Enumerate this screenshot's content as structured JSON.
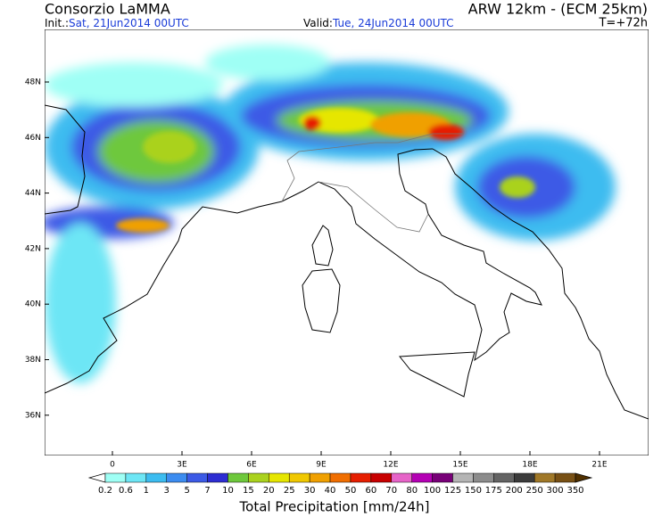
{
  "header": {
    "title": "Consorzio LaMMA",
    "model": "ARW 12km - (ECM 25km)",
    "init_label": "Init.:",
    "init": "Sat, 21Jun2014 00UTC",
    "valid_label": "Valid:",
    "valid": "Tue, 24Jun2014 00UTC",
    "lead": "T=+72h"
  },
  "map": {
    "lat_labels": [
      "48N",
      "46N",
      "44N",
      "42N",
      "40N",
      "38N",
      "36N"
    ],
    "lon_labels": [
      "0",
      "3E",
      "6E",
      "9E",
      "12E",
      "15E",
      "18E",
      "21E"
    ]
  },
  "legend": {
    "title": "Total Precipitation [mm/24h]",
    "levels": [
      0.2,
      0.6,
      1,
      3,
      5,
      7,
      10,
      15,
      20,
      25,
      30,
      40,
      50,
      60,
      70,
      80,
      100,
      125,
      150,
      175,
      200,
      250,
      300,
      350
    ],
    "colors": [
      "#ffffff",
      "#9ffff5",
      "#6de6f5",
      "#3cbcf0",
      "#3c8cf0",
      "#3c5ae6",
      "#2d2dd2",
      "#6ec83c",
      "#aad21e",
      "#e6e600",
      "#f0c800",
      "#f0a000",
      "#f06e00",
      "#e61e00",
      "#c80000",
      "#e664c8",
      "#b400b4",
      "#780078",
      "#b4b4b4",
      "#8c8c8c",
      "#646464",
      "#3c3c3c",
      "#a07828",
      "#785014",
      "#503000"
    ]
  }
}
